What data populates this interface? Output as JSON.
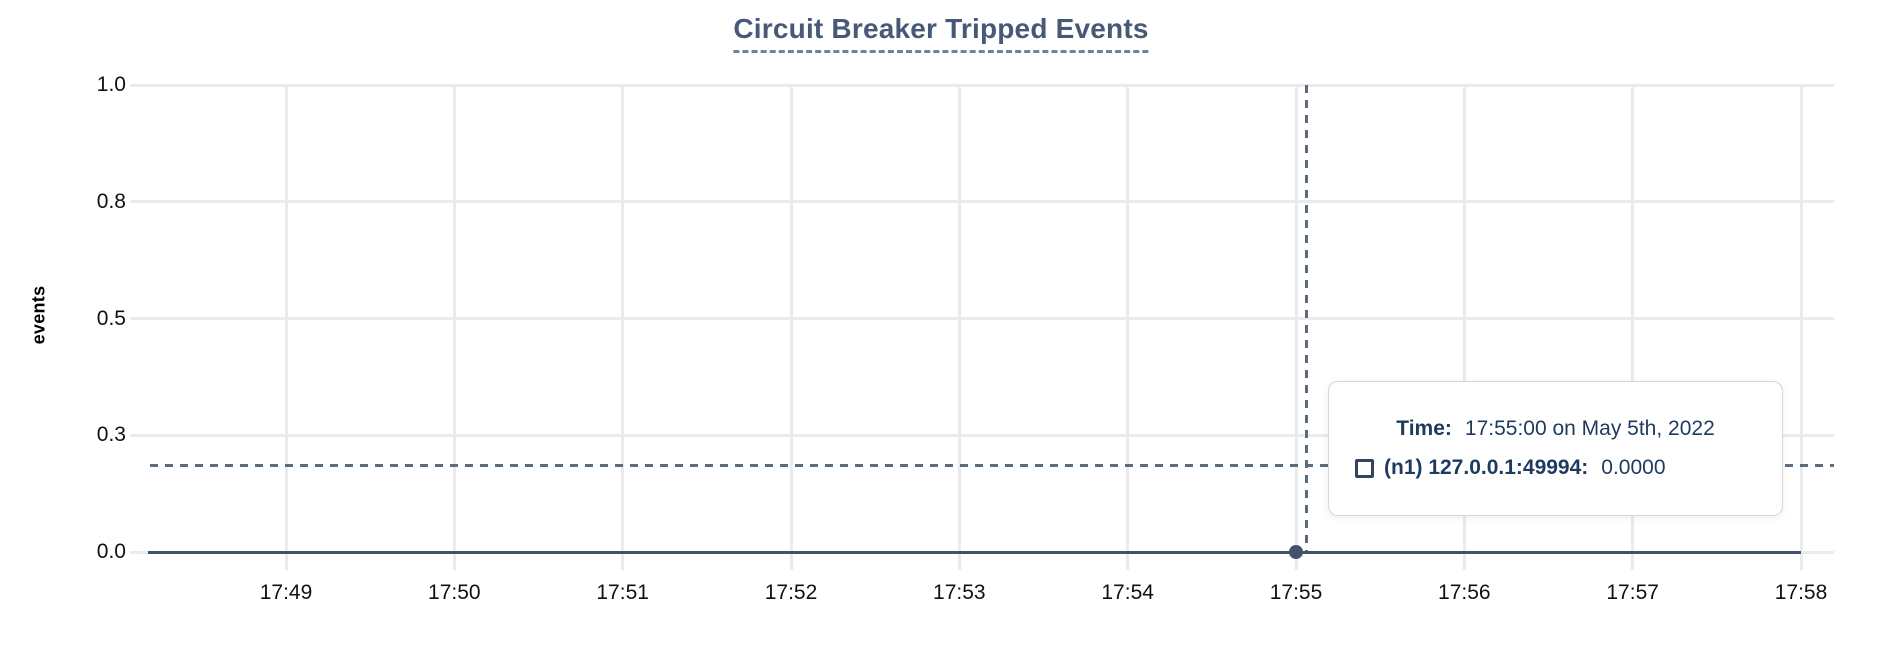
{
  "title": "Circuit Breaker Tripped Events",
  "colors": {
    "series": "#42526b",
    "grid": "#ebebeb",
    "crosshair": "#5b6c7e",
    "title": "#475977",
    "tooltip_text": "#1e3a5f"
  },
  "tooltip": {
    "time_label": "Time:",
    "time_value": "17:55:00 on May 5th, 2022",
    "series_label": "(n1) 127.0.0.1:49994:",
    "series_value": "0.0000"
  },
  "chart_data": {
    "type": "line",
    "title": "Circuit Breaker Tripped Events",
    "xlabel": "",
    "ylabel": "events",
    "ylim": [
      0.0,
      1.0
    ],
    "grid": true,
    "legend_position": "none",
    "x_ticks": [
      "17:49",
      "17:50",
      "17:51",
      "17:52",
      "17:53",
      "17:54",
      "17:55",
      "17:56",
      "17:57",
      "17:58"
    ],
    "y_ticks": [
      "1.0",
      "0.8",
      "0.5",
      "0.3",
      "0.0"
    ],
    "series": [
      {
        "name": "(n1) 127.0.0.1:49994",
        "x": [
          "17:49",
          "17:50",
          "17:51",
          "17:52",
          "17:53",
          "17:54",
          "17:55",
          "17:56",
          "17:57",
          "17:58"
        ],
        "values": [
          0,
          0,
          0,
          0,
          0,
          0,
          0,
          0,
          0,
          0
        ]
      }
    ],
    "hover": {
      "x_tick": "17:55",
      "value": 0.0
    }
  }
}
